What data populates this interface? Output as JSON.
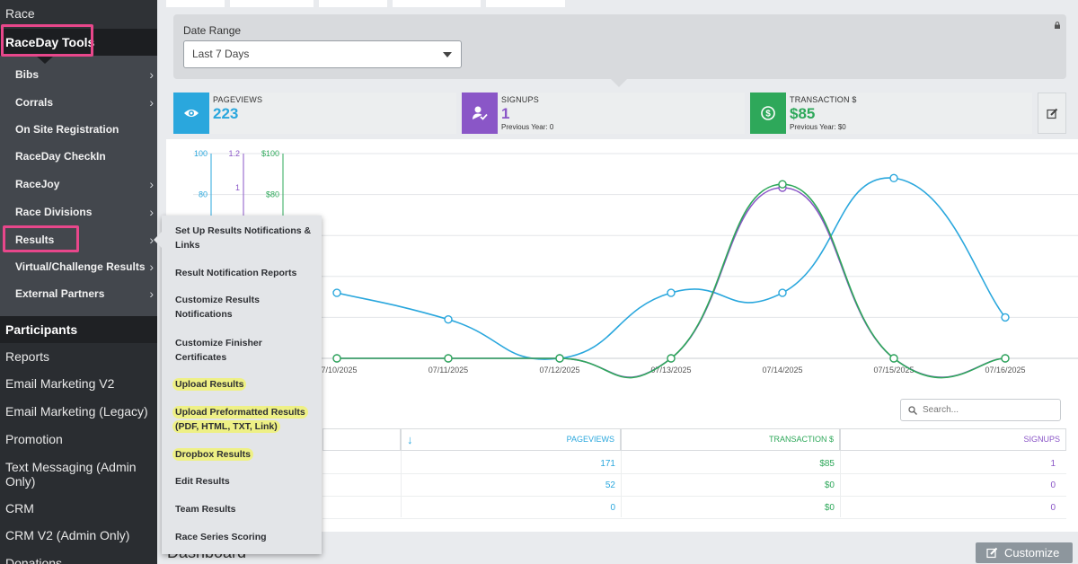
{
  "sidebar": {
    "top": "Race",
    "section": "RaceDay Tools",
    "sub_items": [
      {
        "label": "Bibs",
        "chevron": true
      },
      {
        "label": "Corrals",
        "chevron": true
      },
      {
        "label": "On Site Registration",
        "chevron": false
      },
      {
        "label": "RaceDay CheckIn",
        "chevron": false
      },
      {
        "label": "RaceJoy",
        "chevron": true
      },
      {
        "label": "Race Divisions",
        "chevron": true
      },
      {
        "label": "Results",
        "chevron": true
      },
      {
        "label": "Virtual/Challenge Results",
        "chevron": true
      },
      {
        "label": "External Partners",
        "chevron": true
      }
    ],
    "main_items": [
      "Participants",
      "Reports",
      "Email Marketing V2",
      "Email Marketing (Legacy)",
      "Promotion",
      "Text Messaging (Admin Only)",
      "CRM",
      "CRM V2 (Admin Only)",
      "Donations"
    ]
  },
  "filter": {
    "label": "Date Range",
    "selected": "Last 7 Days"
  },
  "stats": {
    "pageviews": {
      "caption": "PAGEVIEWS",
      "value": "223",
      "color": "#2aa7dd"
    },
    "signups": {
      "caption": "SIGNUPS",
      "value": "1",
      "prev": "Previous Year: 0",
      "color": "#8a56c7"
    },
    "transaction": {
      "caption": "TRANSACTION $",
      "value": "$85",
      "prev": "Previous Year: $0",
      "color": "#2ea85a"
    }
  },
  "chart_data": {
    "type": "line",
    "x": [
      "07/10/2025",
      "07/11/2025",
      "07/12/2025",
      "07/13/2025",
      "07/14/2025",
      "07/15/2025",
      "07/16/2025"
    ],
    "series": [
      {
        "name": "PAGEVIEWS",
        "axis": "left",
        "color": "#2aa7dd",
        "values": [
          32,
          19,
          0,
          32,
          32,
          88,
          20
        ]
      },
      {
        "name": "SIGNUPS",
        "axis": "middle",
        "color": "#8a56c7",
        "values": [
          0,
          0,
          0,
          0,
          1,
          0,
          0
        ]
      },
      {
        "name": "TRANSACTION $",
        "axis": "right",
        "color": "#2ea85a",
        "values": [
          0,
          0,
          0,
          0,
          85,
          0,
          0
        ]
      }
    ],
    "axes": {
      "left": {
        "min": 0,
        "max": 100,
        "ticks": [
          "100",
          "80"
        ]
      },
      "middle": {
        "min": 0,
        "max": 1.2,
        "ticks": [
          "1.2",
          "1"
        ]
      },
      "right": {
        "min": 0,
        "max": 100,
        "ticks": [
          "$100",
          "$80"
        ]
      }
    },
    "grid": true
  },
  "table": {
    "search_placeholder": "Search...",
    "sort_icon": "↓",
    "headers": {
      "pageviews": "PAGEVIEWS",
      "transaction": "TRANSACTION $",
      "signups": "SIGNUPS"
    },
    "rows": [
      {
        "pageviews": "171",
        "transaction": "$85",
        "signups": "1"
      },
      {
        "pageviews": "52",
        "transaction": "$0",
        "signups": "0"
      },
      {
        "pageviews": "0",
        "transaction": "$0",
        "signups": "0"
      }
    ]
  },
  "flyout": {
    "items": [
      {
        "label": "Set Up Results Notifications & Links",
        "highlighted": false
      },
      {
        "label": "Result Notification Reports",
        "highlighted": false
      },
      {
        "label": "Customize Results Notifications",
        "highlighted": false
      },
      {
        "label": "Customize Finisher Certificates",
        "highlighted": false
      },
      {
        "label": "Upload Results",
        "highlighted": true
      },
      {
        "label": "Upload Preformatted Results (PDF, HTML, TXT, Link)",
        "highlighted": true
      },
      {
        "label": "Dropbox Results",
        "highlighted": true
      },
      {
        "label": "Edit Results",
        "highlighted": false
      },
      {
        "label": "Team Results",
        "highlighted": false
      },
      {
        "label": "Race Series Scoring",
        "highlighted": false
      }
    ]
  },
  "bottom": {
    "title": "Dashboard",
    "customize_label": "Customize"
  }
}
